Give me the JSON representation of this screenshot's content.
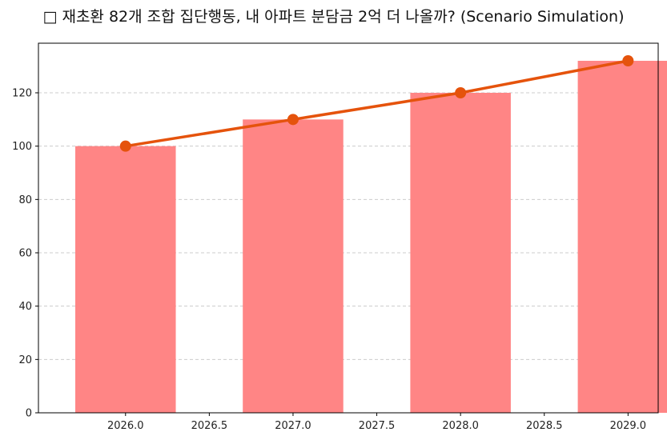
{
  "chart_data": {
    "type": "bar",
    "title": "□ 재초환 82개 조합 집단행동, 내 아파트 분담금 2억 더 나올까? (Scenario Simulation)",
    "xlabel": "",
    "ylabel": "",
    "x": [
      2026,
      2027,
      2028,
      2029
    ],
    "series": [
      {
        "type": "bar",
        "values": [
          100,
          110,
          120,
          132
        ],
        "color": "#ff8585"
      },
      {
        "type": "line",
        "values": [
          100,
          110,
          120,
          132
        ],
        "color": "#e5530c"
      }
    ],
    "xlim": [
      2025.48,
      2029.18
    ],
    "ylim": [
      0,
      138.6
    ],
    "xticks": [
      2026.0,
      2026.5,
      2027.0,
      2027.5,
      2028.0,
      2028.5,
      2029.0
    ],
    "xtick_labels": [
      "2026.0",
      "2026.5",
      "2027.0",
      "2027.5",
      "2028.0",
      "2028.5",
      "2029.0"
    ],
    "yticks": [
      0,
      20,
      40,
      60,
      80,
      100,
      120
    ],
    "ytick_labels": [
      "0",
      "20",
      "40",
      "60",
      "80",
      "100",
      "120"
    ],
    "grid": "y-dashed"
  }
}
